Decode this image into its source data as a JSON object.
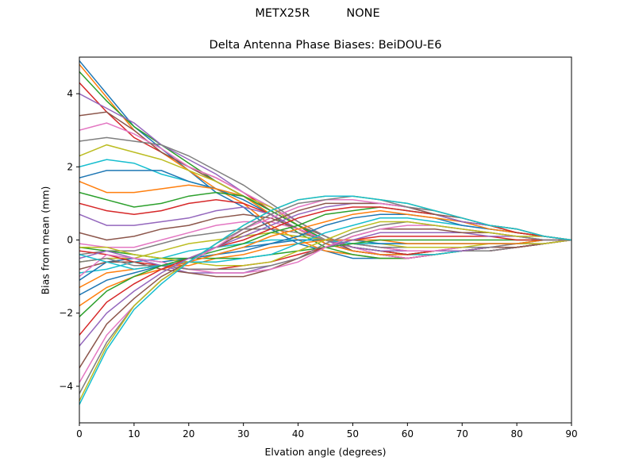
{
  "chart_data": {
    "type": "line",
    "suptitle": "METX25R          NONE",
    "title": "Delta Antenna Phase Biases: BeiDOU-E6",
    "xlabel": "Elvation angle (degrees)",
    "ylabel": "Bias from mean (mm)",
    "xlim": [
      0,
      90
    ],
    "ylim": [
      -5,
      5
    ],
    "xticks": [
      0,
      10,
      20,
      30,
      40,
      50,
      60,
      70,
      80,
      90
    ],
    "yticks": [
      -4,
      -2,
      0,
      2,
      4
    ],
    "grid": false,
    "legend": "none",
    "x": [
      0,
      5,
      10,
      15,
      20,
      25,
      30,
      35,
      40,
      45,
      50,
      55,
      60,
      65,
      70,
      75,
      80,
      85,
      90
    ],
    "colors": [
      "#1f77b4",
      "#ff7f0e",
      "#2ca02c",
      "#d62728",
      "#9467bd",
      "#8c564b",
      "#e377c2",
      "#7f7f7f",
      "#bcbd22",
      "#17becf"
    ],
    "series": [
      {
        "values": [
          4.9,
          4.0,
          3.1,
          2.5,
          1.9,
          1.3,
          0.9,
          0.3,
          -0.1,
          -0.3,
          -0.5,
          -0.5,
          -0.5,
          -0.4,
          -0.3,
          -0.2,
          -0.2,
          -0.1,
          0.0
        ]
      },
      {
        "values": [
          4.8,
          3.9,
          3.0,
          2.4,
          1.9,
          1.4,
          1.0,
          0.4,
          0.0,
          -0.3,
          -0.4,
          -0.5,
          -0.5,
          -0.4,
          -0.3,
          -0.3,
          -0.2,
          -0.1,
          0.0
        ]
      },
      {
        "values": [
          4.6,
          3.8,
          3.1,
          2.6,
          2.1,
          1.6,
          1.2,
          0.7,
          0.2,
          -0.2,
          -0.4,
          -0.5,
          -0.5,
          -0.4,
          -0.3,
          -0.3,
          -0.2,
          -0.1,
          0.0
        ]
      },
      {
        "values": [
          4.3,
          3.5,
          2.8,
          2.4,
          2.0,
          1.7,
          1.3,
          0.8,
          0.4,
          -0.1,
          -0.3,
          -0.4,
          -0.5,
          -0.4,
          -0.3,
          -0.3,
          -0.2,
          -0.1,
          0.0
        ]
      },
      {
        "values": [
          4.0,
          3.6,
          3.2,
          2.6,
          2.2,
          1.8,
          1.3,
          0.9,
          0.4,
          0.0,
          -0.3,
          -0.4,
          -0.5,
          -0.4,
          -0.3,
          -0.3,
          -0.2,
          -0.1,
          0.0
        ]
      },
      {
        "values": [
          3.4,
          3.5,
          3.0,
          2.4,
          2.0,
          1.6,
          1.2,
          0.8,
          0.4,
          0.1,
          -0.3,
          -0.4,
          -0.5,
          -0.4,
          -0.3,
          -0.3,
          -0.2,
          -0.1,
          0.0
        ]
      },
      {
        "values": [
          3.0,
          3.2,
          2.9,
          2.5,
          2.0,
          1.7,
          1.3,
          0.9,
          0.5,
          0.1,
          -0.2,
          -0.4,
          -0.5,
          -0.4,
          -0.3,
          -0.3,
          -0.2,
          -0.1,
          0.0
        ]
      },
      {
        "values": [
          2.7,
          2.8,
          2.7,
          2.6,
          2.3,
          1.9,
          1.5,
          1.0,
          0.5,
          0.1,
          -0.2,
          -0.3,
          -0.4,
          -0.4,
          -0.3,
          -0.3,
          -0.2,
          -0.1,
          0.0
        ]
      },
      {
        "values": [
          2.3,
          2.6,
          2.4,
          2.2,
          1.9,
          1.6,
          1.2,
          0.9,
          0.4,
          0.0,
          -0.2,
          -0.3,
          -0.4,
          -0.4,
          -0.3,
          -0.2,
          -0.2,
          -0.1,
          0.0
        ]
      },
      {
        "values": [
          2.0,
          2.2,
          2.1,
          1.8,
          1.6,
          1.4,
          1.2,
          0.8,
          0.4,
          0.0,
          -0.2,
          -0.3,
          -0.4,
          -0.4,
          -0.3,
          -0.2,
          -0.2,
          -0.1,
          0.0
        ]
      },
      {
        "values": [
          1.7,
          1.9,
          1.9,
          1.9,
          1.6,
          1.4,
          1.1,
          0.7,
          0.3,
          -0.1,
          -0.3,
          -0.4,
          -0.4,
          -0.3,
          -0.3,
          -0.2,
          -0.2,
          -0.1,
          0.0
        ]
      },
      {
        "values": [
          1.6,
          1.3,
          1.3,
          1.4,
          1.5,
          1.4,
          1.2,
          0.7,
          0.3,
          -0.1,
          -0.3,
          -0.4,
          -0.4,
          -0.3,
          -0.3,
          -0.2,
          -0.2,
          -0.1,
          0.0
        ]
      },
      {
        "values": [
          1.3,
          1.1,
          0.9,
          1.0,
          1.2,
          1.3,
          1.2,
          0.8,
          0.4,
          0.0,
          -0.2,
          -0.3,
          -0.4,
          -0.3,
          -0.3,
          -0.2,
          -0.2,
          -0.1,
          0.0
        ]
      },
      {
        "values": [
          1.0,
          0.8,
          0.7,
          0.8,
          1.0,
          1.1,
          1.0,
          0.7,
          0.3,
          0.0,
          -0.2,
          -0.3,
          -0.4,
          -0.3,
          -0.3,
          -0.2,
          -0.2,
          -0.1,
          0.0
        ]
      },
      {
        "values": [
          0.7,
          0.4,
          0.4,
          0.5,
          0.6,
          0.8,
          0.9,
          0.7,
          0.3,
          0.0,
          -0.2,
          -0.3,
          -0.3,
          -0.3,
          -0.3,
          -0.2,
          -0.2,
          -0.1,
          0.0
        ]
      },
      {
        "values": [
          0.2,
          0.0,
          0.1,
          0.3,
          0.4,
          0.6,
          0.7,
          0.6,
          0.3,
          0.0,
          -0.1,
          -0.2,
          -0.3,
          -0.3,
          -0.2,
          -0.2,
          -0.2,
          -0.1,
          0.0
        ]
      },
      {
        "values": [
          -0.1,
          -0.2,
          -0.2,
          0.0,
          0.2,
          0.4,
          0.5,
          0.5,
          0.3,
          0.0,
          -0.1,
          -0.2,
          -0.3,
          -0.3,
          -0.2,
          -0.2,
          -0.1,
          -0.1,
          0.0
        ]
      },
      {
        "values": [
          -0.4,
          -0.3,
          -0.3,
          -0.1,
          0.1,
          0.2,
          0.3,
          0.3,
          0.2,
          0.0,
          -0.1,
          -0.2,
          -0.2,
          -0.2,
          -0.2,
          -0.2,
          -0.1,
          -0.1,
          0.0
        ]
      },
      {
        "values": [
          -0.6,
          -0.5,
          -0.5,
          -0.3,
          -0.1,
          0.0,
          0.1,
          0.2,
          0.1,
          0.0,
          -0.1,
          -0.1,
          -0.2,
          -0.2,
          -0.2,
          -0.1,
          -0.1,
          -0.1,
          0.0
        ]
      },
      {
        "values": [
          -0.9,
          -0.8,
          -0.6,
          -0.5,
          -0.3,
          -0.2,
          -0.1,
          0.0,
          0.0,
          0.0,
          -0.1,
          -0.1,
          -0.1,
          -0.1,
          -0.1,
          -0.1,
          -0.1,
          0.0,
          0.0
        ]
      },
      {
        "values": [
          -1.1,
          -0.6,
          -0.5,
          -0.6,
          -0.5,
          -0.4,
          -0.2,
          -0.1,
          0.0,
          0.0,
          0.0,
          -0.1,
          -0.1,
          -0.1,
          -0.1,
          -0.1,
          -0.1,
          0.0,
          0.0
        ]
      },
      {
        "values": [
          -1.3,
          -0.9,
          -0.8,
          -0.7,
          -0.7,
          -0.5,
          -0.4,
          -0.2,
          -0.1,
          0.0,
          0.0,
          0.0,
          -0.1,
          -0.1,
          -0.1,
          -0.1,
          -0.1,
          0.0,
          0.0
        ]
      },
      {
        "values": [
          -0.2,
          -0.3,
          -0.4,
          -0.5,
          -0.5,
          -0.5,
          -0.5,
          -0.4,
          -0.3,
          -0.2,
          -0.1,
          0.0,
          0.0,
          0.0,
          0.0,
          0.0,
          0.0,
          0.0,
          0.0
        ]
      },
      {
        "values": [
          -0.3,
          -0.4,
          -0.6,
          -0.7,
          -0.8,
          -0.8,
          -0.7,
          -0.6,
          -0.4,
          -0.2,
          0.0,
          0.1,
          0.1,
          0.1,
          0.1,
          0.1,
          0.0,
          0.0,
          0.0
        ]
      },
      {
        "values": [
          -0.5,
          -0.3,
          -0.5,
          -0.7,
          -0.9,
          -0.9,
          -0.9,
          -0.7,
          -0.5,
          -0.2,
          0.0,
          0.2,
          0.2,
          0.2,
          0.2,
          0.1,
          0.1,
          0.0,
          0.0
        ]
      },
      {
        "values": [
          -0.8,
          -0.6,
          -0.6,
          -0.8,
          -0.9,
          -1.0,
          -1.0,
          -0.8,
          -0.5,
          -0.2,
          0.1,
          0.3,
          0.3,
          0.3,
          0.2,
          0.2,
          0.1,
          0.0,
          0.0
        ]
      },
      {
        "values": [
          -1.0,
          -0.4,
          -0.5,
          -0.6,
          -0.8,
          -0.9,
          -0.9,
          -0.8,
          -0.6,
          -0.2,
          0.1,
          0.3,
          0.4,
          0.4,
          0.3,
          0.2,
          0.1,
          0.0,
          0.0
        ]
      },
      {
        "values": [
          -0.6,
          -0.5,
          -0.7,
          -0.7,
          -0.8,
          -0.8,
          -0.8,
          -0.7,
          -0.5,
          -0.1,
          0.2,
          0.4,
          0.5,
          0.4,
          0.3,
          0.2,
          0.1,
          0.0,
          0.0
        ]
      },
      {
        "values": [
          -0.2,
          -0.2,
          -0.4,
          -0.5,
          -0.6,
          -0.7,
          -0.7,
          -0.6,
          -0.3,
          0.0,
          0.3,
          0.5,
          0.5,
          0.4,
          0.3,
          0.2,
          0.1,
          0.1,
          0.0
        ]
      },
      {
        "values": [
          -0.4,
          -0.6,
          -0.8,
          -0.7,
          -0.6,
          -0.6,
          -0.5,
          -0.4,
          -0.1,
          0.2,
          0.4,
          0.6,
          0.6,
          0.5,
          0.4,
          0.3,
          0.2,
          0.1,
          0.0
        ]
      },
      {
        "values": [
          -1.5,
          -1.1,
          -0.9,
          -0.7,
          -0.5,
          -0.4,
          -0.3,
          -0.1,
          0.1,
          0.4,
          0.6,
          0.7,
          0.7,
          0.6,
          0.4,
          0.3,
          0.2,
          0.1,
          0.0
        ]
      },
      {
        "values": [
          -1.8,
          -1.3,
          -1.0,
          -0.8,
          -0.6,
          -0.4,
          -0.2,
          0.1,
          0.3,
          0.5,
          0.7,
          0.8,
          0.7,
          0.6,
          0.5,
          0.3,
          0.2,
          0.1,
          0.0
        ]
      },
      {
        "values": [
          -2.1,
          -1.4,
          -1.0,
          -0.7,
          -0.5,
          -0.3,
          -0.1,
          0.2,
          0.4,
          0.7,
          0.8,
          0.9,
          0.8,
          0.7,
          0.5,
          0.4,
          0.2,
          0.1,
          0.0
        ]
      },
      {
        "values": [
          -2.6,
          -1.7,
          -1.2,
          -0.8,
          -0.5,
          -0.2,
          0.0,
          0.3,
          0.6,
          0.8,
          0.9,
          0.9,
          0.8,
          0.7,
          0.5,
          0.4,
          0.2,
          0.1,
          0.0
        ]
      },
      {
        "values": [
          -2.9,
          -2.0,
          -1.4,
          -0.9,
          -0.5,
          -0.2,
          0.1,
          0.4,
          0.7,
          0.9,
          1.0,
          1.0,
          0.9,
          0.7,
          0.5,
          0.4,
          0.3,
          0.1,
          0.0
        ]
      },
      {
        "values": [
          -3.5,
          -2.3,
          -1.6,
          -1.0,
          -0.6,
          -0.2,
          0.2,
          0.5,
          0.8,
          1.0,
          1.0,
          1.0,
          0.9,
          0.7,
          0.6,
          0.4,
          0.3,
          0.1,
          0.0
        ]
      },
      {
        "values": [
          -3.9,
          -2.6,
          -1.8,
          -1.1,
          -0.6,
          -0.2,
          0.3,
          0.6,
          0.9,
          1.1,
          1.1,
          1.0,
          0.9,
          0.8,
          0.6,
          0.4,
          0.3,
          0.1,
          0.0
        ]
      },
      {
        "values": [
          -4.2,
          -2.8,
          -1.8,
          -1.1,
          -0.6,
          -0.1,
          0.3,
          0.7,
          1.0,
          1.1,
          1.2,
          1.1,
          0.9,
          0.8,
          0.6,
          0.4,
          0.3,
          0.1,
          0.0
        ]
      },
      {
        "values": [
          -4.4,
          -2.9,
          -1.8,
          -1.1,
          -0.6,
          -0.1,
          0.4,
          0.8,
          1.1,
          1.2,
          1.2,
          1.1,
          1.0,
          0.8,
          0.6,
          0.4,
          0.3,
          0.1,
          0.0
        ]
      },
      {
        "values": [
          -4.5,
          -3.0,
          -1.9,
          -1.2,
          -0.6,
          -0.1,
          0.4,
          0.8,
          1.1,
          1.2,
          1.2,
          1.1,
          1.0,
          0.8,
          0.6,
          0.4,
          0.3,
          0.1,
          0.0
        ]
      }
    ]
  }
}
